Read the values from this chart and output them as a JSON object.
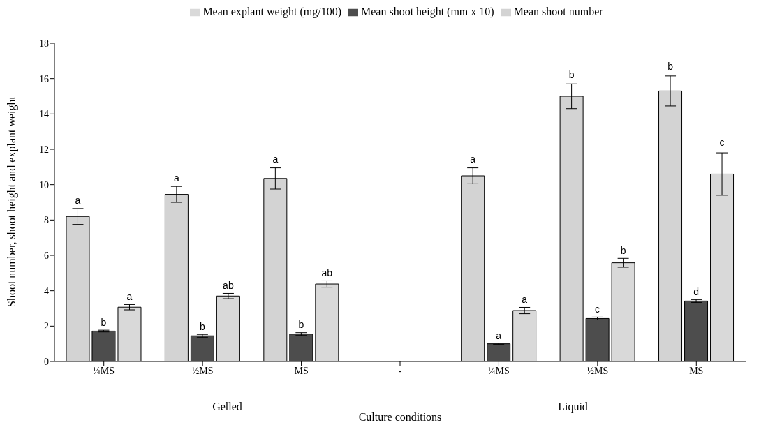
{
  "chart_data": {
    "type": "bar",
    "xlabel": "Culture conditions",
    "ylabel": "Shoot number, shoot height and explant weight",
    "categories": [
      "¼MS",
      "½MS",
      "MS",
      "-",
      "¼MS",
      "½MS",
      "MS"
    ],
    "series": [
      {
        "name": "Mean shoot number",
        "color": "#d3d3d3",
        "values": [
          8.2,
          9.45,
          10.35,
          null,
          10.5,
          15.0,
          15.3
        ],
        "errors": [
          0.45,
          0.45,
          0.6,
          null,
          0.45,
          0.7,
          0.85
        ],
        "value_labels": [
          "a",
          "a",
          "a",
          null,
          "a",
          "b",
          "b"
        ]
      },
      {
        "name": "Mean shoot height (mm x 10)",
        "color": "#4d4d4d",
        "values": [
          1.72,
          1.45,
          1.55,
          null,
          1.0,
          2.43,
          3.42
        ],
        "errors": [
          0.05,
          0.08,
          0.08,
          null,
          0.04,
          0.08,
          0.08
        ],
        "value_labels": [
          "b",
          "b",
          "b",
          null,
          "a",
          "c",
          "d"
        ]
      },
      {
        "name": "Mean explant weight (mg/100)",
        "color": "#d9d9d9",
        "values": [
          3.07,
          3.7,
          4.38,
          null,
          2.88,
          5.58,
          10.6
        ],
        "errors": [
          0.15,
          0.15,
          0.18,
          null,
          0.18,
          0.25,
          1.2
        ],
        "value_labels": [
          "a",
          "ab",
          "ab",
          null,
          "a",
          "b",
          "c"
        ]
      }
    ],
    "ylim": [
      0,
      18
    ],
    "yticks": [
      0,
      2,
      4,
      6,
      8,
      10,
      12,
      14,
      16,
      18
    ],
    "grid": false,
    "legend": "top",
    "annotations": [
      "Gelled",
      "Liquid"
    ]
  }
}
